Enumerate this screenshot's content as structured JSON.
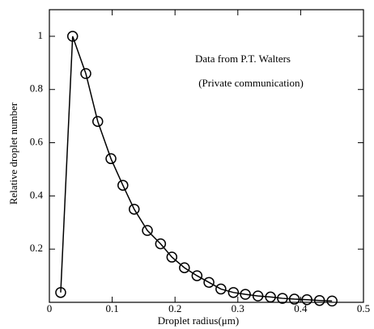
{
  "chart_data": {
    "type": "line",
    "x_label": "Droplet radius(μm)",
    "y_label": "Relative droplet number",
    "annotations": [
      "Data from P.T. Walters",
      "(Private communication)"
    ],
    "x": [
      0.018,
      0.037,
      0.058,
      0.077,
      0.098,
      0.117,
      0.135,
      0.156,
      0.177,
      0.195,
      0.215,
      0.235,
      0.254,
      0.273,
      0.293,
      0.312,
      0.332,
      0.352,
      0.371,
      0.39,
      0.41,
      0.43,
      0.45
    ],
    "series": [
      {
        "color": "#000000",
        "marker": "circle",
        "values": [
          0.037,
          1.0,
          0.86,
          0.68,
          0.54,
          0.44,
          0.35,
          0.27,
          0.22,
          0.17,
          0.13,
          0.1,
          0.075,
          0.05,
          0.037,
          0.03,
          0.024,
          0.02,
          0.015,
          0.012,
          0.01,
          0.007,
          0.005
        ]
      }
    ],
    "xlim": [
      0,
      0.5
    ],
    "xticks": [
      0,
      0.1,
      0.2,
      0.3,
      0.4,
      0.5
    ],
    "ylim": [
      0,
      1.1
    ],
    "yticks": [
      0.2,
      0.4,
      0.6,
      0.8,
      1
    ]
  }
}
